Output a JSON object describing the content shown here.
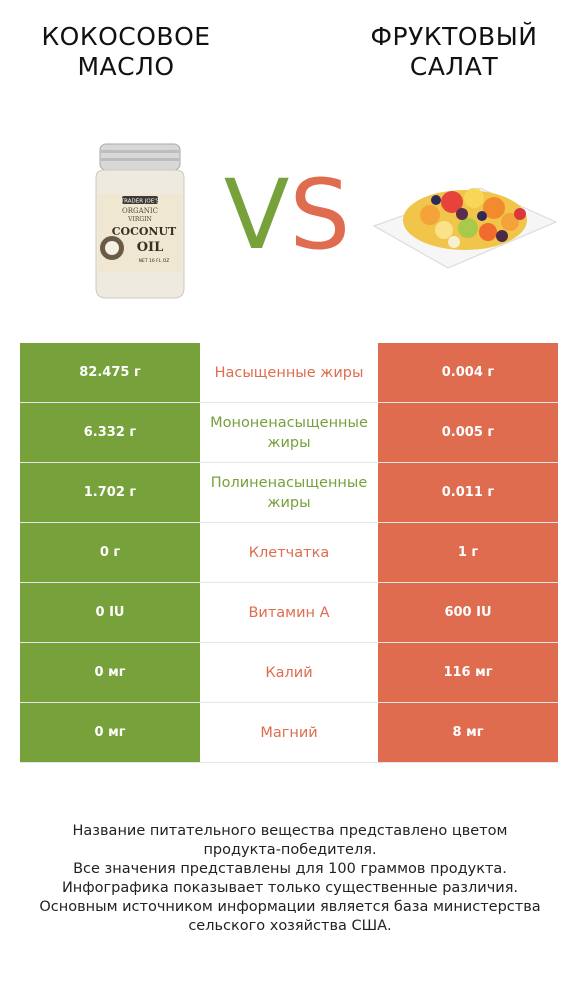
{
  "header": {
    "left_title_line1": "КОКОСОВОЕ",
    "left_title_line2": "МАСЛО",
    "right_title_line1": "ФРУКТОВЫЙ",
    "right_title_line2": "САЛАТ",
    "vs_v": "V",
    "vs_s": "S"
  },
  "colors": {
    "left_product": "#76a13b",
    "right_product": "#e06c50"
  },
  "rows": [
    {
      "left": "82.475 г",
      "nutrient": "Насыщенные жиры",
      "right": "0.004 г",
      "winner": "right"
    },
    {
      "left": "6.332 г",
      "nutrient": "Мононенасыщенные жиры",
      "right": "0.005 г",
      "winner": "left"
    },
    {
      "left": "1.702 г",
      "nutrient": "Полиненасыщенные жиры",
      "right": "0.011 г",
      "winner": "left"
    },
    {
      "left": "0 г",
      "nutrient": "Клетчатка",
      "right": "1 г",
      "winner": "right"
    },
    {
      "left": "0 IU",
      "nutrient": "Витамин A",
      "right": "600 IU",
      "winner": "right"
    },
    {
      "left": "0 мг",
      "nutrient": "Калий",
      "right": "116 мг",
      "winner": "right"
    },
    {
      "left": "0 мг",
      "nutrient": "Магний",
      "right": "8 мг",
      "winner": "right"
    }
  ],
  "jar_label": {
    "brand": "TRADER JOE'S",
    "organic": "ORGANIC",
    "virgin": "VIRGIN",
    "coconut": "COCONUT",
    "oil": "OIL",
    "net": "NET 16 FL OZ"
  },
  "footer": {
    "line1": "Название питательного вещества представлено цветом",
    "line2": "продукта-победителя.",
    "line3": "Все значения представлены для 100 граммов продукта.",
    "line4": "Инфографика показывает только существенные различия.",
    "line5": "Основным источником информации является база министерства",
    "line6": "сельского хозяйства США."
  }
}
